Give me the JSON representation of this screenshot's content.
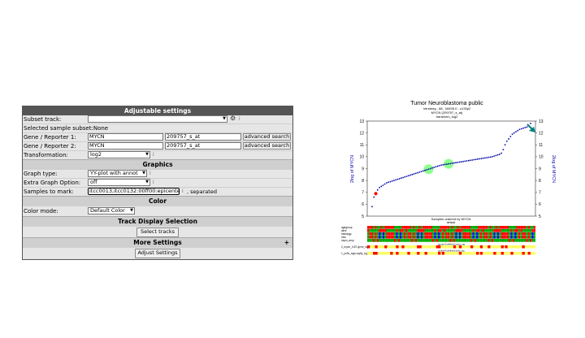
{
  "panel": {
    "title": "Adjustable settings",
    "subset_track_label": "Subset track:",
    "selected_subset_label": "Selected sample subset:",
    "selected_subset_value": "None",
    "gene1_label": "Gene / Reporter 1:",
    "gene1_value": "MYCN",
    "reporter1_value": "209757_s_at",
    "gene2_label": "Gene / Reporter 2:",
    "gene2_value": "MYCN",
    "reporter2_value": "209757_s_at",
    "advanced_search_label": "advanced search",
    "transformation_label": "Transformation:",
    "transformation_value": "log2",
    "info_glyph": "i",
    "gear_glyph": "⚙"
  },
  "graphics": {
    "title": "Graphics",
    "graph_type_label": "Graph type:",
    "graph_type_value": "YY-plot with annot",
    "extra_option_label": "Extra Graph Option:",
    "extra_option_value": "off",
    "samples_label": "Samples to mark:",
    "samples_value": "itcc0013,itcc0132:00ff00:epicenter",
    "separated_text": ", separated"
  },
  "color": {
    "title": "Color",
    "mode_label": "Color mode:",
    "mode_value": "Default Color"
  },
  "track": {
    "title": "Track Display Selection",
    "select_label": "Select tracks"
  },
  "more": {
    "title": "More Settings",
    "plus": "+",
    "adjust_label": "Adjust Settings"
  },
  "colors": {
    "marker": "#0000aa",
    "highlight": "#00ff00",
    "accent_red": "#ff0000",
    "arrow": "#008080"
  },
  "chart_data": {
    "type": "scatter",
    "title": "Tumor Neuroblastoma public",
    "subtitle": "Versteeg - 88 - MAS5.0 - u133p2",
    "subtitle2": "MYCN (209757_s_at)",
    "subtitle3": "transform_log2",
    "ylabel_left": "2log of MYCN",
    "ylabel_right": "2log of MYCN",
    "xlabel": "Samples ordered by MYCN",
    "xlabel2": "default",
    "ylim": [
      5,
      13
    ],
    "yticks": [
      5,
      6,
      7,
      8,
      9,
      10,
      11,
      12,
      13
    ],
    "n_samples": 88,
    "y_values": [
      5.8,
      6.6,
      6.9,
      7.2,
      7.4,
      7.5,
      7.6,
      7.7,
      7.8,
      7.85,
      7.9,
      7.95,
      8.0,
      8.05,
      8.1,
      8.15,
      8.2,
      8.25,
      8.3,
      8.35,
      8.4,
      8.45,
      8.5,
      8.55,
      8.6,
      8.65,
      8.7,
      8.75,
      8.8,
      8.85,
      8.9,
      8.95,
      9.0,
      9.05,
      9.1,
      9.15,
      9.2,
      9.25,
      9.3,
      9.32,
      9.35,
      9.37,
      9.4,
      9.42,
      9.45,
      9.47,
      9.5,
      9.52,
      9.55,
      9.57,
      9.6,
      9.62,
      9.65,
      9.67,
      9.7,
      9.72,
      9.75,
      9.77,
      9.8,
      9.82,
      9.85,
      9.87,
      9.9,
      9.92,
      9.95,
      9.97,
      10.0,
      10.05,
      10.1,
      10.15,
      10.2,
      10.3,
      10.6,
      11.0,
      11.3,
      11.5,
      11.7,
      11.9,
      12.0,
      12.1,
      12.2,
      12.3,
      12.35,
      12.4,
      12.45,
      12.5,
      12.6,
      12.8
    ],
    "marked_samples": [
      31,
      42
    ],
    "red_sample": 2,
    "tracks": [
      {
        "name": "agegroup"
      },
      {
        "name": "alive"
      },
      {
        "name": "histology"
      },
      {
        "name": "inss"
      },
      {
        "name": "mycn_amp"
      }
    ],
    "bar_tracks": [
      {
        "name": "2_mycn_r157-gene_sigs-",
        "label": "group=2:defined:mycn_sig"
      },
      {
        "name": "1_pc9c_sigs=sq5y_log0-6-",
        "label": "group=2:defined:sc9c_sig"
      }
    ]
  }
}
